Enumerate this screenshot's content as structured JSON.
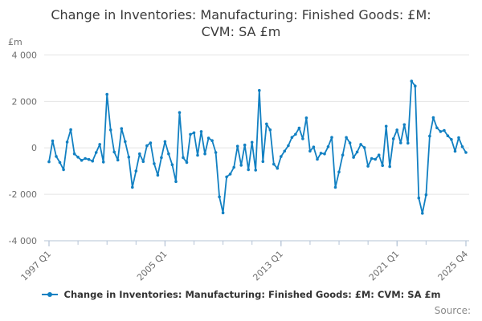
{
  "title": {
    "line1": "Change in Inventories: Manufacturing: Finished Goods: £M:",
    "line2": "CVM: SA £m"
  },
  "y_axis": {
    "unit_label": "£m",
    "tick_labels": [
      "4 000",
      "2 000",
      "0",
      "-2 000",
      "-4 000"
    ],
    "tick_values": [
      4000,
      2000,
      0,
      -2000,
      -4000
    ],
    "range": [
      -4000,
      4000
    ]
  },
  "x_axis": {
    "labeled_ticks": [
      {
        "text": "1997 Q1",
        "quarter_index": 0
      },
      {
        "text": "2005 Q1",
        "quarter_index": 32
      },
      {
        "text": "2013 Q1",
        "quarter_index": 64
      },
      {
        "text": "2021 Q1",
        "quarter_index": 96
      },
      {
        "text": "2025 Q4",
        "quarter_index": 115
      }
    ],
    "minor_tick_every_quarters": 8
  },
  "legend": {
    "label": "Change in Inventories: Manufacturing: Finished Goods: £M: CVM: SA £m"
  },
  "source_label": "Source:",
  "colors": {
    "line": "#1280c2",
    "grid": "#e4e4e4",
    "axis": "#b4c3d6",
    "tick_text": "#6e6e6e",
    "title_text": "#3b3b3b",
    "legend_text": "#333333",
    "source_text": "#8a8a8a"
  },
  "chart_data": {
    "type": "line",
    "title": "Change in Inventories: Manufacturing: Finished Goods: £M: CVM: SA £m",
    "ylabel": "£m",
    "ylim": [
      -4000,
      4000
    ],
    "frequency": "quarterly",
    "x_start": "1997 Q1",
    "x_end": "2025 Q4",
    "grid": true,
    "legend_position": "bottom",
    "marker": "circle",
    "x": [
      "1997 Q1",
      "1997 Q2",
      "1997 Q3",
      "1997 Q4",
      "1998 Q1",
      "1998 Q2",
      "1998 Q3",
      "1998 Q4",
      "1999 Q1",
      "1999 Q2",
      "1999 Q3",
      "1999 Q4",
      "2000 Q1",
      "2000 Q2",
      "2000 Q3",
      "2000 Q4",
      "2001 Q1",
      "2001 Q2",
      "2001 Q3",
      "2001 Q4",
      "2002 Q1",
      "2002 Q2",
      "2002 Q3",
      "2002 Q4",
      "2003 Q1",
      "2003 Q2",
      "2003 Q3",
      "2003 Q4",
      "2004 Q1",
      "2004 Q2",
      "2004 Q3",
      "2004 Q4",
      "2005 Q1",
      "2005 Q2",
      "2005 Q3",
      "2005 Q4",
      "2006 Q1",
      "2006 Q2",
      "2006 Q3",
      "2006 Q4",
      "2007 Q1",
      "2007 Q2",
      "2007 Q3",
      "2007 Q4",
      "2008 Q1",
      "2008 Q2",
      "2008 Q3",
      "2008 Q4",
      "2009 Q1",
      "2009 Q2",
      "2009 Q3",
      "2009 Q4",
      "2010 Q1",
      "2010 Q2",
      "2010 Q3",
      "2010 Q4",
      "2011 Q1",
      "2011 Q2",
      "2011 Q3",
      "2011 Q4",
      "2012 Q1",
      "2012 Q2",
      "2012 Q3",
      "2012 Q4",
      "2013 Q1",
      "2013 Q2",
      "2013 Q3",
      "2013 Q4",
      "2014 Q1",
      "2014 Q2",
      "2014 Q3",
      "2014 Q4",
      "2015 Q1",
      "2015 Q2",
      "2015 Q3",
      "2015 Q4",
      "2016 Q1",
      "2016 Q2",
      "2016 Q3",
      "2016 Q4",
      "2017 Q1",
      "2017 Q2",
      "2017 Q3",
      "2017 Q4",
      "2018 Q1",
      "2018 Q2",
      "2018 Q3",
      "2018 Q4",
      "2019 Q1",
      "2019 Q2",
      "2019 Q3",
      "2019 Q4",
      "2020 Q1",
      "2020 Q2",
      "2020 Q3",
      "2020 Q4",
      "2021 Q1",
      "2021 Q2",
      "2021 Q3",
      "2021 Q4",
      "2022 Q1",
      "2022 Q2",
      "2022 Q3",
      "2022 Q4",
      "2023 Q1",
      "2023 Q2",
      "2023 Q3",
      "2023 Q4",
      "2024 Q1",
      "2024 Q2",
      "2024 Q3",
      "2024 Q4",
      "2025 Q1",
      "2025 Q2",
      "2025 Q3",
      "2025 Q4"
    ],
    "values": [
      -600,
      300,
      -370,
      -630,
      -940,
      250,
      780,
      -260,
      -400,
      -540,
      -460,
      -500,
      -570,
      -200,
      150,
      -610,
      2300,
      770,
      -180,
      -530,
      830,
      270,
      -400,
      -1700,
      -1000,
      -260,
      -590,
      90,
      210,
      -680,
      -1180,
      -420,
      270,
      -260,
      -730,
      -1450,
      1520,
      -420,
      -630,
      580,
      650,
      -320,
      700,
      -260,
      420,
      310,
      -200,
      -2110,
      -2800,
      -1250,
      -1130,
      -840,
      70,
      -750,
      120,
      -940,
      240,
      -960,
      2470,
      -590,
      1030,
      775,
      -705,
      -880,
      -375,
      -140,
      95,
      450,
      585,
      850,
      390,
      1290,
      -140,
      35,
      -495,
      -230,
      -260,
      50,
      450,
      -1700,
      -1040,
      -310,
      445,
      210,
      -410,
      -180,
      150,
      10,
      -790,
      -460,
      -495,
      -310,
      -765,
      930,
      -810,
      390,
      770,
      210,
      1000,
      200,
      2870,
      2660,
      -2160,
      -2820,
      -2020,
      505,
      1300,
      860,
      700,
      745,
      520,
      360,
      -150,
      440,
      50,
      -200
    ]
  }
}
